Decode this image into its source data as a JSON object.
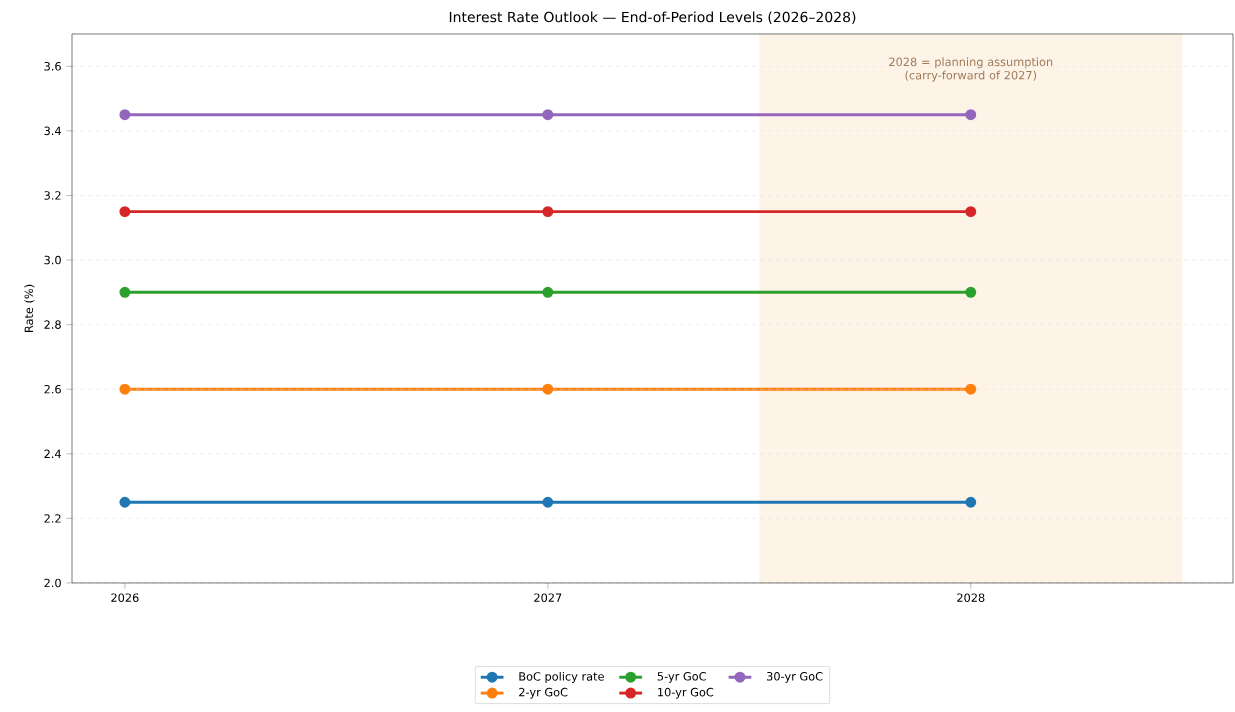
{
  "chart_data": {
    "type": "line",
    "title": "Interest Rate Outlook — End-of-Period Levels (2026–2028)",
    "ylabel": "Rate (%)",
    "x": [
      2026,
      2027,
      2028
    ],
    "xlim": [
      2025.875,
      2028.62
    ],
    "xticks": [
      2026,
      2027,
      2028
    ],
    "ylim": [
      2.0,
      3.7
    ],
    "yticks": [
      {
        "value": 2.0,
        "label": "2.0"
      },
      {
        "value": 2.2,
        "label": "2.2"
      },
      {
        "value": 2.4,
        "label": "2.4"
      },
      {
        "value": 2.6,
        "label": "2.6"
      },
      {
        "value": 2.8,
        "label": "2.8"
      },
      {
        "value": 3.0,
        "label": "3.0"
      },
      {
        "value": 3.2,
        "label": "3.2"
      },
      {
        "value": 3.4,
        "label": "3.4"
      },
      {
        "value": 3.6,
        "label": "3.6"
      }
    ],
    "series": [
      {
        "name": "BoC policy rate",
        "color": "#1f77b4",
        "values": [
          2.25,
          2.25,
          2.25
        ]
      },
      {
        "name": "2-yr GoC",
        "color": "#ff7f0e",
        "values": [
          2.6,
          2.6,
          2.6
        ]
      },
      {
        "name": "5-yr GoC",
        "color": "#2ca02c",
        "values": [
          2.9,
          2.9,
          2.9
        ]
      },
      {
        "name": "10-yr GoC",
        "color": "#d62728",
        "values": [
          3.15,
          3.15,
          3.15
        ]
      },
      {
        "name": "30-yr GoC",
        "color": "#9467bd",
        "values": [
          3.45,
          3.45,
          3.45
        ]
      }
    ],
    "bands": [
      {
        "axis": "x",
        "from": 2027.5,
        "to": 2028.5,
        "color": "#fdf3e7",
        "label": "2028 = planning assumption (carry-forward of 2027)"
      }
    ],
    "grid": "y",
    "legend": "bottom",
    "marker": "circle",
    "line_style": "solid"
  }
}
